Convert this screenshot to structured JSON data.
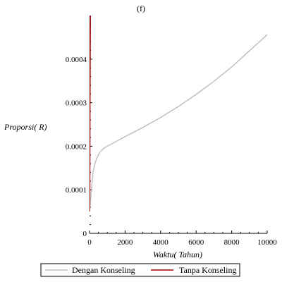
{
  "chart_data": {
    "type": "line",
    "title": "(f)",
    "xlabel": "Waktu( Tahun)",
    "ylabel": "Proporsi( R)",
    "xlim": [
      0,
      10000
    ],
    "ylim": [
      0,
      0.0005
    ],
    "x_ticks": [
      "0",
      "2000",
      "4000",
      "6000",
      "8000",
      "10000"
    ],
    "y_ticks": [
      "0",
      "0.0001",
      "0.0002",
      "0.0003",
      "0.0004"
    ],
    "grid": false,
    "legend_position": "bottom",
    "series": [
      {
        "name": "Dengan Konseling",
        "color": "#c0c0c0",
        "x": [
          0,
          50,
          100,
          200,
          300,
          400,
          500,
          600,
          800,
          1000,
          1500,
          2000,
          3000,
          4000,
          5000,
          6000,
          7000,
          8000,
          9000,
          10000
        ],
        "y": [
          5e-05,
          7e-05,
          0.0001,
          0.00014,
          0.00016,
          0.000172,
          0.00018,
          0.000187,
          0.000195,
          0.0002,
          0.000211,
          0.000222,
          0.000243,
          0.000266,
          0.000291,
          0.000319,
          0.000349,
          0.000382,
          0.000419,
          0.000456
        ]
      },
      {
        "name": "Tanpa Konseling",
        "color": "#a00000",
        "x": [
          0,
          10,
          20,
          40
        ],
        "y": [
          5e-05,
          0.0001,
          0.0003,
          0.0005
        ]
      }
    ]
  }
}
